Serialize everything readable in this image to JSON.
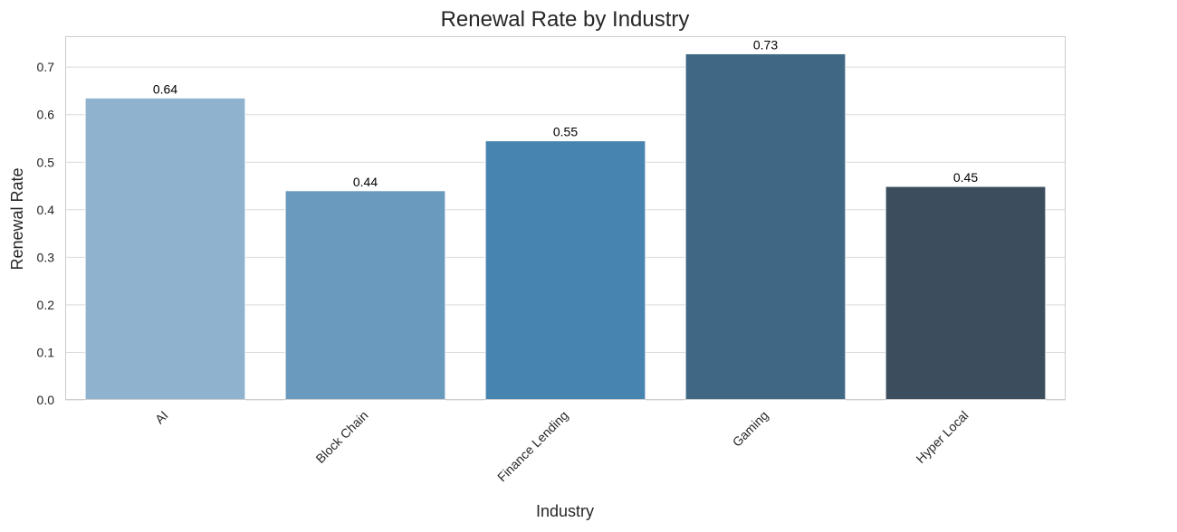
{
  "chart_data": {
    "type": "bar",
    "title": "Renewal Rate by Industry",
    "xlabel": "Industry",
    "ylabel": "Renewal Rate",
    "categories": [
      "AI",
      "Block Chain",
      "Finance Lending",
      "Gaming",
      "Hyper Local"
    ],
    "values": [
      0.635,
      0.44,
      0.545,
      0.728,
      0.449
    ],
    "data_labels": [
      "0.64",
      "0.44",
      "0.55",
      "0.73",
      "0.45"
    ],
    "ylim": [
      0,
      0.765
    ],
    "yticks": [
      0.0,
      0.1,
      0.2,
      0.3,
      0.4,
      0.5,
      0.6,
      0.7
    ],
    "ytick_labels": [
      "0.0",
      "0.1",
      "0.2",
      "0.3",
      "0.4",
      "0.5",
      "0.6",
      "0.7"
    ],
    "grid": "y",
    "colors": [
      "#8fb3cf",
      "#6a9bbe",
      "#4884b0",
      "#406884",
      "#3c4e5d"
    ],
    "grid_color": "#d9d9d9",
    "frame_color": "#cccccc"
  }
}
